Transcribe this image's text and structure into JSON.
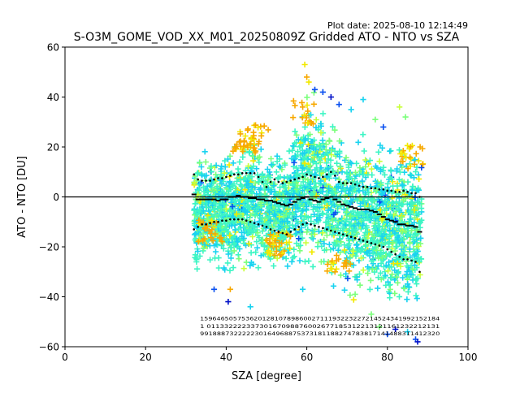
{
  "chart_data": {
    "type": "scatter",
    "title": "S-O3M_GOME_VOD_XX_M01_20250809Z Gridded ATO - NTO vs SZA",
    "subtitle": "Plot date: 2025-08-10 12:14:49",
    "xlabel": "SZA [degree]",
    "ylabel": "ATO - NTO [DU]",
    "xlim": [
      0,
      100
    ],
    "ylim": [
      -60,
      60
    ],
    "xticks": [
      0,
      20,
      40,
      60,
      80,
      100
    ],
    "yticks": [
      -60,
      -40,
      -20,
      0,
      20,
      40,
      60
    ],
    "grid": false,
    "legend": "none",
    "marker": "+",
    "reference_line": 0,
    "colors": {
      "cyan": "#1ad3f0",
      "aquamarine": "#3df5c4",
      "light_green": "#7bff7b",
      "yellow_green": "#c8ff3a",
      "yellow": "#f2e900",
      "orange": "#f7a800",
      "blue": "#0a50f0",
      "dark_blue": "#0010c8",
      "marker_black": "#000000"
    },
    "envelope": {
      "sza": [
        32,
        35,
        40,
        45,
        48,
        52,
        55,
        58,
        60,
        63,
        66,
        70,
        74,
        78,
        82,
        85,
        87,
        88.5
      ],
      "upper": [
        22,
        22,
        25,
        27,
        27,
        22,
        20,
        42,
        50,
        45,
        36,
        30,
        29,
        27,
        25,
        27,
        31,
        30
      ],
      "lower": [
        -33,
        -34,
        -38,
        -35,
        -38,
        -32,
        -30,
        -36,
        -33,
        -34,
        -40,
        -43,
        -44,
        -46,
        -50,
        -52,
        -57,
        -58
      ]
    },
    "high_points": [
      {
        "x": 59.5,
        "y": 53,
        "c": "yellow"
      },
      {
        "x": 60,
        "y": 48,
        "c": "orange"
      },
      {
        "x": 60.5,
        "y": 46,
        "c": "yellow"
      },
      {
        "x": 62,
        "y": 43,
        "c": "blue"
      },
      {
        "x": 64,
        "y": 42,
        "c": "blue"
      },
      {
        "x": 66,
        "y": 40,
        "c": "dark_blue"
      },
      {
        "x": 68,
        "y": 37,
        "c": "blue"
      },
      {
        "x": 71,
        "y": 35,
        "c": "cyan"
      },
      {
        "x": 74,
        "y": 39,
        "c": "cyan"
      },
      {
        "x": 77,
        "y": 31,
        "c": "light_green"
      },
      {
        "x": 79,
        "y": 28,
        "c": "blue"
      },
      {
        "x": 83,
        "y": 36,
        "c": "yellow_green"
      },
      {
        "x": 84.5,
        "y": 32,
        "c": "light_green"
      },
      {
        "x": 59,
        "y": 36,
        "c": "orange"
      }
    ],
    "low_points": [
      {
        "x": 40.5,
        "y": -42,
        "c": "dark_blue"
      },
      {
        "x": 41,
        "y": -37,
        "c": "orange"
      },
      {
        "x": 46,
        "y": -44,
        "c": "cyan"
      },
      {
        "x": 59,
        "y": -37,
        "c": "cyan"
      },
      {
        "x": 67,
        "y": -30,
        "c": "orange"
      },
      {
        "x": 72,
        "y": -39,
        "c": "light_green"
      },
      {
        "x": 76,
        "y": -47,
        "c": "light_green"
      },
      {
        "x": 78,
        "y": -52,
        "c": "light_green"
      },
      {
        "x": 80,
        "y": -55,
        "c": "blue"
      },
      {
        "x": 82,
        "y": -53,
        "c": "dark_blue"
      },
      {
        "x": 85,
        "y": -54,
        "c": "cyan"
      },
      {
        "x": 87,
        "y": -57,
        "c": "blue"
      },
      {
        "x": 87.5,
        "y": -58,
        "c": "dark_blue"
      },
      {
        "x": 37,
        "y": -37,
        "c": "blue"
      }
    ],
    "orange_clusters": [
      {
        "x": 44.5,
        "y": 22,
        "spread": 3,
        "n": 30
      },
      {
        "x": 47.5,
        "y": 24,
        "spread": 3,
        "n": 20
      },
      {
        "x": 36,
        "y": -14,
        "spread": 3,
        "n": 25
      },
      {
        "x": 53,
        "y": -19,
        "spread": 3,
        "n": 35
      },
      {
        "x": 59,
        "y": 34,
        "spread": 3,
        "n": 18
      },
      {
        "x": 86,
        "y": 16,
        "spread": 3,
        "n": 22
      },
      {
        "x": 68,
        "y": -25,
        "spread": 3,
        "n": 18
      }
    ],
    "series": [
      {
        "name": "mean",
        "marker": "_",
        "x": [
          32,
          33,
          34,
          35,
          36,
          37,
          38,
          39,
          40,
          41,
          42,
          43,
          44,
          45,
          46,
          47,
          48,
          49,
          50,
          51,
          52,
          53,
          54,
          55,
          56,
          57,
          58,
          59,
          60,
          61,
          62,
          63,
          64,
          65,
          66,
          67,
          68,
          69,
          70,
          71,
          72,
          73,
          74,
          75,
          76,
          77,
          78,
          79,
          80,
          81,
          82,
          83,
          84,
          85,
          86,
          87,
          88
        ],
        "y": [
          1,
          -1,
          -1,
          -1,
          -1,
          -1,
          -1.5,
          -1,
          -1,
          0,
          0,
          0.5,
          0,
          0,
          -0.5,
          -0.5,
          -1,
          -1,
          -1.5,
          -1.5,
          -2,
          -2.5,
          -3,
          -3.5,
          -3,
          -2,
          -1,
          -0.5,
          0,
          -1,
          -1.5,
          -2,
          -1,
          -0.5,
          0,
          -1,
          -2,
          -3,
          -3.5,
          -4,
          -4.5,
          -5,
          -5,
          -5,
          -5.5,
          -6,
          -7,
          -8,
          -9,
          -9.5,
          -10,
          -11,
          -11,
          -11.5,
          -11.5,
          -12,
          -14
        ]
      },
      {
        "name": "mean_plus_std",
        "marker": ".",
        "x": [
          32,
          33,
          34,
          35,
          36,
          37,
          38,
          39,
          40,
          41,
          42,
          43,
          44,
          45,
          46,
          47,
          48,
          49,
          50,
          51,
          52,
          53,
          54,
          55,
          56,
          57,
          58,
          59,
          60,
          61,
          62,
          63,
          64,
          65,
          66,
          67,
          68,
          69,
          70,
          71,
          72,
          73,
          74,
          75,
          76,
          77,
          78,
          79,
          80,
          81,
          82,
          83,
          84,
          85,
          86,
          87,
          88
        ],
        "y": [
          9,
          7,
          6.5,
          6.5,
          6.5,
          7,
          7.5,
          7.5,
          8,
          8.5,
          9,
          9,
          9.5,
          9.5,
          9.5,
          9.5,
          8,
          6,
          4,
          6,
          7,
          6,
          5.5,
          6,
          6.5,
          7,
          7.5,
          8,
          9,
          8.5,
          8,
          7.5,
          8,
          9,
          10,
          8.5,
          6,
          5.5,
          5.5,
          5.5,
          5,
          4.5,
          4,
          4,
          3.5,
          3.5,
          3,
          3,
          2.5,
          2.5,
          2,
          2,
          2.5,
          2,
          1.5,
          1.5,
          0
        ]
      },
      {
        "name": "mean_minus_std",
        "marker": ".",
        "x": [
          32,
          33,
          34,
          35,
          36,
          37,
          38,
          39,
          40,
          41,
          42,
          43,
          44,
          45,
          46,
          47,
          48,
          49,
          50,
          51,
          52,
          53,
          54,
          55,
          56,
          57,
          58,
          59,
          60,
          61,
          62,
          63,
          64,
          65,
          66,
          67,
          68,
          69,
          70,
          71,
          72,
          73,
          74,
          75,
          76,
          77,
          78,
          79,
          80,
          81,
          82,
          83,
          84,
          85,
          86,
          87,
          88
        ],
        "y": [
          -13,
          -12,
          -11,
          -11,
          -10.5,
          -10,
          -10,
          -9.5,
          -9.5,
          -9,
          -9,
          -9,
          -9,
          -9.5,
          -10,
          -10.5,
          -11,
          -11.5,
          -12,
          -13,
          -13.5,
          -14,
          -14.5,
          -15,
          -14,
          -13,
          -12,
          -11,
          -10.5,
          -11,
          -11.5,
          -12,
          -12.5,
          -13,
          -13.5,
          -14,
          -14.5,
          -15,
          -15.5,
          -16,
          -16.5,
          -17,
          -17.5,
          -18,
          -18.5,
          -19,
          -19.5,
          -20,
          -21,
          -22,
          -23,
          -24,
          -25,
          -25,
          -25.5,
          -26,
          -30
        ]
      }
    ],
    "count_rows": [
      "1596465057536201281078986002711193223227214524341992152184",
      "1 01133222233730167098876002677185312213121161232212131",
      "991888732222230164968875373181188274783817141488311412320"
    ]
  }
}
